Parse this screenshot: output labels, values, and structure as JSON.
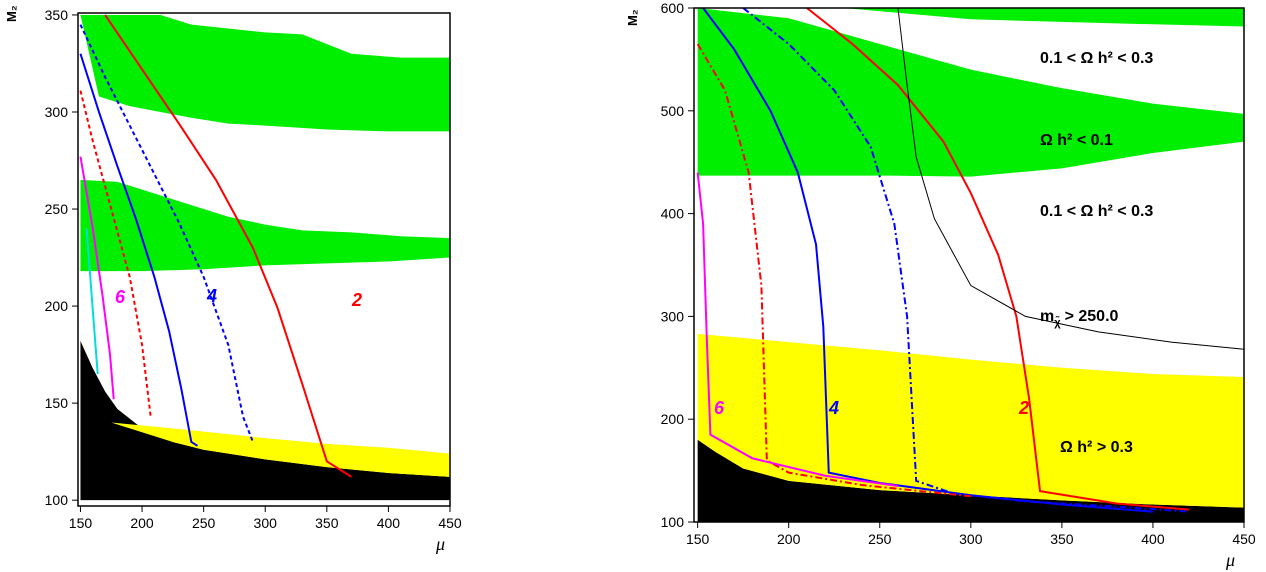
{
  "chart_data": [
    {
      "type": "line",
      "title": "",
      "xlabel": "μ",
      "ylabel": "M₂",
      "xlim": [
        148,
        450
      ],
      "ylim": [
        97,
        351
      ],
      "x_ticks": [
        150,
        200,
        250,
        300,
        350,
        400,
        450
      ],
      "x_tick_labels": [
        "150",
        "200",
        "250",
        "300",
        "350",
        "400",
        "450"
      ],
      "y_ticks": [
        100,
        150,
        200,
        250,
        300,
        350
      ],
      "y_tick_labels": [
        "100",
        "150",
        "200",
        "250",
        "300",
        "350"
      ],
      "regions": [
        {
          "kind": "excluded",
          "color": "#000000",
          "lower": [
            [
              150,
              100
            ],
            [
              450,
              100
            ]
          ],
          "upper": [
            [
              150,
              182
            ],
            [
              160,
              168
            ],
            [
              170,
              156
            ],
            [
              180,
              147
            ],
            [
              200,
              137
            ],
            [
              225,
              130
            ],
            [
              250,
              126
            ],
            [
              300,
              121
            ],
            [
              350,
              117
            ],
            [
              400,
              114
            ],
            [
              450,
              112
            ]
          ]
        },
        {
          "kind": "omega_gt_0.3",
          "color": "#ffff00",
          "lower": [
            [
              175,
              140
            ],
            [
              225,
              130
            ],
            [
              250,
              126
            ],
            [
              300,
              121
            ],
            [
              350,
              117
            ],
            [
              400,
              114
            ],
            [
              450,
              112
            ]
          ],
          "upper": [
            [
              175,
              140
            ],
            [
              225,
              137
            ],
            [
              300,
              132
            ],
            [
              350,
              129
            ],
            [
              400,
              127
            ],
            [
              450,
              124
            ]
          ]
        },
        {
          "kind": "omega_band",
          "color": "#00ee00",
          "lower": [
            [
              150,
              218
            ],
            [
              170,
              218
            ],
            [
              200,
              218
            ],
            [
              250,
              219
            ],
            [
              300,
              221
            ],
            [
              350,
              222
            ],
            [
              400,
              223
            ],
            [
              450,
              225
            ]
          ],
          "upper": [
            [
              150,
              265
            ],
            [
              180,
              264
            ],
            [
              210,
              258
            ],
            [
              240,
              252
            ],
            [
              270,
              246
            ],
            [
              300,
              242
            ],
            [
              330,
              239
            ],
            [
              370,
              238
            ],
            [
              410,
              236
            ],
            [
              450,
              235
            ]
          ]
        },
        {
          "kind": "omega_band",
          "color": "#00ee00",
          "lower": [
            [
              165,
              308
            ],
            [
              190,
              303
            ],
            [
              215,
              300
            ],
            [
              240,
              297
            ],
            [
              270,
              294
            ],
            [
              300,
              293
            ],
            [
              350,
              291
            ],
            [
              400,
              290
            ],
            [
              450,
              290
            ]
          ],
          "upper": [
            [
              150,
              350
            ],
            [
              215,
              350
            ],
            [
              240,
              345
            ],
            [
              270,
              343
            ],
            [
              300,
              341
            ],
            [
              330,
              340
            ],
            [
              370,
              330
            ],
            [
              410,
              328
            ],
            [
              450,
              328
            ]
          ]
        }
      ],
      "series": [
        {
          "label": "2",
          "color": "#ff0000",
          "style": "solid",
          "x": [
            170,
            200,
            230,
            260,
            290,
            310,
            330,
            350,
            370
          ],
          "y": [
            350,
            322,
            294,
            265,
            230,
            199,
            160,
            120,
            112
          ]
        },
        {
          "label": "",
          "color": "#0000ff",
          "style": "dashed",
          "x": [
            150,
            170,
            190,
            210,
            230,
            250,
            270,
            282,
            290
          ],
          "y": [
            345,
            318,
            293,
            268,
            243,
            215,
            180,
            143,
            130
          ]
        },
        {
          "label": "4",
          "color": "#0000ff",
          "style": "solid",
          "x": [
            150,
            165,
            180,
            195,
            210,
            222,
            232,
            240,
            245
          ],
          "y": [
            330,
            300,
            272,
            245,
            215,
            187,
            157,
            130,
            128
          ]
        },
        {
          "label": "",
          "color": "#ff0000",
          "style": "dashed",
          "x": [
            150,
            160,
            175,
            190,
            200,
            207
          ],
          "y": [
            311,
            285,
            250,
            215,
            180,
            143
          ]
        },
        {
          "label": "6",
          "color": "#ff00ff",
          "style": "solid",
          "x": [
            150,
            160,
            168,
            174,
            177
          ],
          "y": [
            277,
            240,
            205,
            175,
            152
          ]
        },
        {
          "label": "",
          "color": "#00dddd",
          "style": "solid",
          "x": [
            155,
            160,
            164
          ],
          "y": [
            240,
            198,
            165
          ]
        }
      ]
    },
    {
      "type": "line",
      "title": "",
      "xlabel": "μ",
      "ylabel": "M₂",
      "xlim": [
        148,
        450
      ],
      "ylim": [
        100,
        600
      ],
      "x_ticks": [
        150,
        200,
        250,
        300,
        350,
        400,
        450
      ],
      "x_tick_labels": [
        "150",
        "200",
        "250",
        "300",
        "350",
        "400",
        "450"
      ],
      "y_ticks": [
        100,
        200,
        300,
        400,
        500,
        600
      ],
      "y_tick_labels": [
        "100",
        "200",
        "300",
        "400",
        "500",
        "600"
      ],
      "regions": [
        {
          "kind": "excluded",
          "color": "#000000",
          "lower": [
            [
              150,
              100
            ],
            [
              450,
              100
            ]
          ],
          "upper": [
            [
              150,
              180
            ],
            [
              160,
              168
            ],
            [
              175,
              152
            ],
            [
              200,
              140
            ],
            [
              250,
              131
            ],
            [
              300,
              126
            ],
            [
              350,
              121
            ],
            [
              400,
              117
            ],
            [
              450,
              114
            ]
          ]
        },
        {
          "kind": "omega_gt_0.3",
          "color": "#ffff00",
          "lower": [
            [
              150,
              180
            ],
            [
              160,
              168
            ],
            [
              175,
              152
            ],
            [
              200,
              140
            ],
            [
              250,
              131
            ],
            [
              300,
              126
            ],
            [
              350,
              121
            ],
            [
              400,
              117
            ],
            [
              450,
              114
            ]
          ],
          "upper": [
            [
              150,
              283
            ],
            [
              200,
              275
            ],
            [
              250,
              267
            ],
            [
              300,
              258
            ],
            [
              350,
              250
            ],
            [
              400,
              244
            ],
            [
              450,
              241
            ]
          ]
        },
        {
          "kind": "omega_lt_0.1",
          "color": "#00ee00",
          "lower": [
            [
              150,
              437
            ],
            [
              200,
              437
            ],
            [
              250,
              437
            ],
            [
              300,
              436
            ],
            [
              350,
              444
            ],
            [
              400,
              459
            ],
            [
              450,
              470
            ]
          ],
          "upper": [
            [
              150,
              600
            ],
            [
              200,
              590
            ],
            [
              250,
              565
            ],
            [
              300,
              540
            ],
            [
              350,
              522
            ],
            [
              400,
              507
            ],
            [
              450,
              497
            ]
          ]
        },
        {
          "kind": "omega_lt_0.1",
          "color": "#00ee00",
          "lower": [
            [
              230,
              600
            ],
            [
              300,
              589
            ],
            [
              380,
              585
            ],
            [
              450,
              582
            ]
          ],
          "upper": [
            [
              230,
              600
            ],
            [
              450,
              600
            ]
          ]
        }
      ],
      "annotations": [
        {
          "text": "0.1 <  Ω h² < 0.3",
          "x": 350,
          "y": 560
        },
        {
          "text": "Ω h² < 0.1",
          "x": 350,
          "y": 478
        },
        {
          "text": "0.1 <  Ω h² < 0.3",
          "x": 350,
          "y": 408
        },
        {
          "text": "mₓ > 250.0",
          "x": 345,
          "y": 303
        },
        {
          "text": "Ω h² > 0.3",
          "x": 355,
          "y": 172
        }
      ],
      "series": [
        {
          "label": "2",
          "color": "#ff0000",
          "style": "solid",
          "x": [
            210,
            235,
            260,
            285,
            300,
            315,
            325,
            332,
            338,
            380,
            420
          ],
          "y": [
            600,
            565,
            525,
            470,
            420,
            360,
            300,
            220,
            130,
            118,
            112
          ]
        },
        {
          "label": "",
          "color": "#0000ff",
          "style": "dashdot",
          "x": [
            175,
            200,
            225,
            245,
            258,
            265,
            270,
            290,
            330,
            380,
            420
          ],
          "y": [
            600,
            565,
            520,
            465,
            390,
            300,
            140,
            128,
            120,
            115,
            110
          ]
        },
        {
          "label": "4",
          "color": "#0000ff",
          "style": "solid",
          "x": [
            153,
            170,
            190,
            205,
            215,
            219,
            222,
            250,
            300,
            350,
            400
          ],
          "y": [
            600,
            560,
            500,
            440,
            370,
            290,
            148,
            138,
            126,
            117,
            110
          ]
        },
        {
          "label": "",
          "color": "#ff0000",
          "style": "dashdot",
          "x": [
            150,
            165,
            178,
            185,
            188,
            200,
            240,
            300
          ],
          "y": [
            565,
            520,
            440,
            330,
            160,
            148,
            136,
            125
          ]
        },
        {
          "label": "6",
          "color": "#ff00ff",
          "style": "solid",
          "x": [
            150,
            153,
            155,
            157,
            180,
            220,
            260
          ],
          "y": [
            440,
            390,
            280,
            185,
            162,
            145,
            135
          ]
        },
        {
          "label": "",
          "color": "#000000",
          "style": "solid",
          "width": 1,
          "x": [
            260,
            265,
            270,
            280,
            300,
            330,
            370,
            410,
            450
          ],
          "y": [
            600,
            525,
            455,
            395,
            330,
            300,
            285,
            275,
            268
          ]
        }
      ]
    }
  ],
  "labels": {
    "left_xlabel": "μ",
    "left_ylabel": "M₂",
    "right_xlabel": "μ",
    "right_ylabel": "M₂",
    "left_curve_2": "2",
    "left_curve_4": "4",
    "left_curve_6": "6",
    "right_curve_2": "2",
    "right_curve_4": "4",
    "right_curve_6": "6",
    "region_top": "0.1 <  Ω h² < 0.3",
    "region_green": "Ω h² < 0.1",
    "region_mid": "0.1 <  Ω h² < 0.3",
    "region_mass": "m",
    "region_mass_rest": "> 250.0",
    "region_yellow": "Ω h² > 0.3"
  },
  "colors": {
    "green": "#00ee00",
    "yellow": "#ffff00",
    "black": "#000000",
    "red": "#ff0000",
    "blue": "#0000ff",
    "magenta": "#ff00ff",
    "cyan": "#00dddd"
  }
}
